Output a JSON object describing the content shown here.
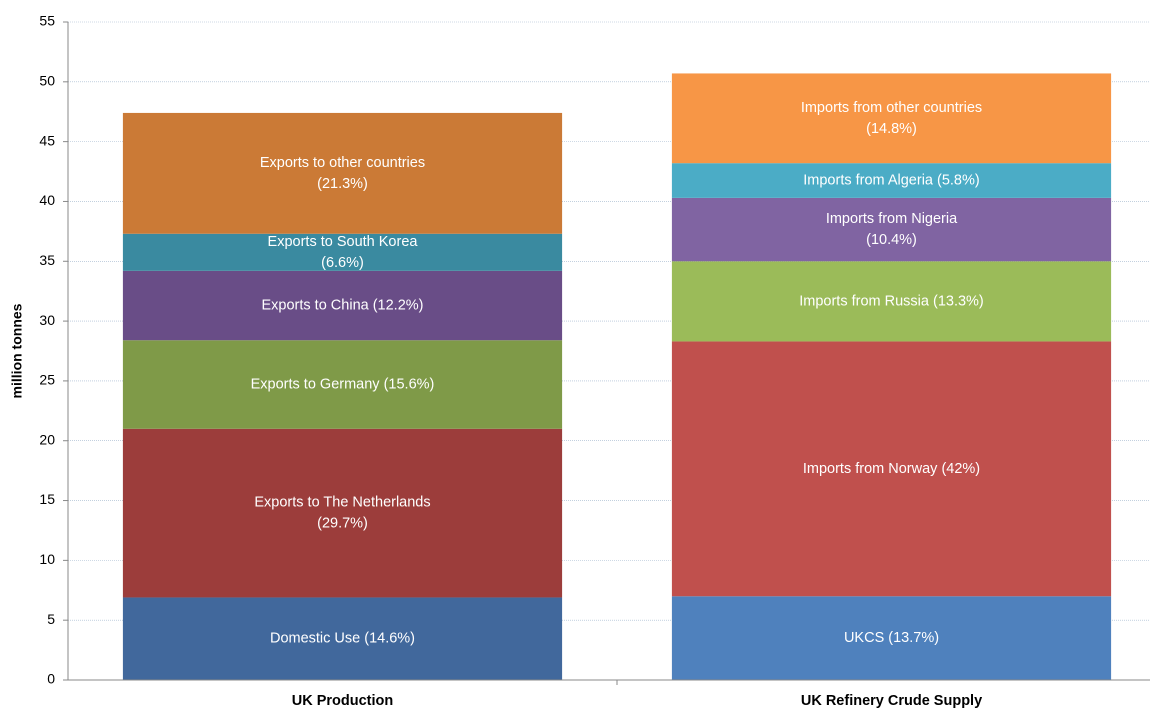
{
  "chart_data": {
    "type": "stacked_bar",
    "y_label": "million tonnes",
    "ylim": [
      0,
      55
    ],
    "yticks": [
      0,
      5,
      10,
      15,
      20,
      25,
      30,
      35,
      40,
      45,
      50,
      55
    ],
    "grid": true,
    "categories": [
      "UK Production",
      "UK Refinery Crude Supply"
    ],
    "stacks": [
      {
        "segments": [
          {
            "label": [
              "Domestic Use (14.6%)"
            ],
            "value": 6.9,
            "color": "#41689c"
          },
          {
            "label": [
              "Exports to The Netherlands",
              "(29.7%)"
            ],
            "value": 14.1,
            "color": "#9c3d3b"
          },
          {
            "label": [
              "Exports to Germany (15.6%)"
            ],
            "value": 7.4,
            "color": "#7f9a48"
          },
          {
            "label": [
              "Exports to China (12.2%)"
            ],
            "value": 5.8,
            "color": "#694d87"
          },
          {
            "label": [
              "Exports to South Korea",
              "(6.6%)"
            ],
            "value": 3.1,
            "color": "#3a8aa0"
          },
          {
            "label": [
              "Exports to other countries",
              "(21.3%)"
            ],
            "value": 10.1,
            "color": "#cb7a36"
          }
        ]
      },
      {
        "segments": [
          {
            "label": [
              "UKCS (13.7%)"
            ],
            "value": 7.0,
            "color": "#4f81bd"
          },
          {
            "label": [
              "Imports from Norway (42%)"
            ],
            "value": 21.3,
            "color": "#c0504d"
          },
          {
            "label": [
              "Imports from Russia (13.3%)"
            ],
            "value": 6.7,
            "color": "#9bbb59"
          },
          {
            "label": [
              "Imports from Nigeria",
              "(10.4%)"
            ],
            "value": 5.3,
            "color": "#8064a2"
          },
          {
            "label": [
              "Imports from Algeria (5.8%)"
            ],
            "value": 2.9,
            "color": "#4bacc6"
          },
          {
            "label": [
              "Imports from other countries",
              "(14.8%)"
            ],
            "value": 7.5,
            "color": "#f79646"
          }
        ]
      }
    ]
  }
}
